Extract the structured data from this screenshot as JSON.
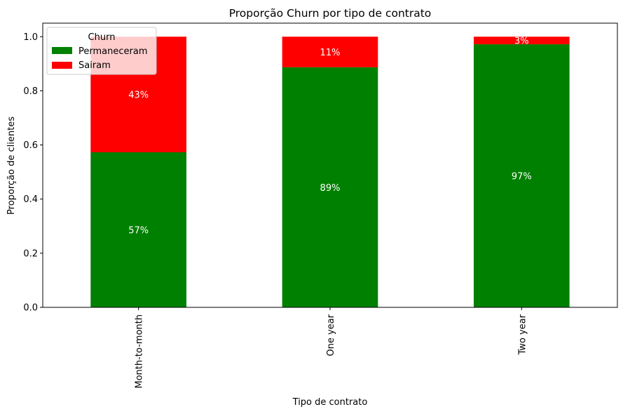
{
  "chart_data": {
    "type": "bar",
    "stacked": true,
    "title": "Proporção Churn por tipo de contrato",
    "xlabel": "Tipo de contrato",
    "ylabel": "Proporção de clientes",
    "categories": [
      "Month-to-month",
      "One year",
      "Two year"
    ],
    "ylim": [
      0,
      1.05
    ],
    "yticks": [
      "0.0",
      "0.2",
      "0.4",
      "0.6",
      "0.8",
      "1.0"
    ],
    "grid": false,
    "legend": {
      "title": "Churn",
      "placement": "top-left"
    },
    "series": [
      {
        "name": "Permaneceram",
        "color": "#008000",
        "values": [
          0.573,
          0.887,
          0.972
        ],
        "labels": [
          "57%",
          "89%",
          "97%"
        ]
      },
      {
        "name": "Sairam",
        "color": "#ff0000",
        "values": [
          0.427,
          0.113,
          0.028
        ],
        "labels": [
          "43%",
          "11%",
          "3%"
        ]
      }
    ]
  }
}
